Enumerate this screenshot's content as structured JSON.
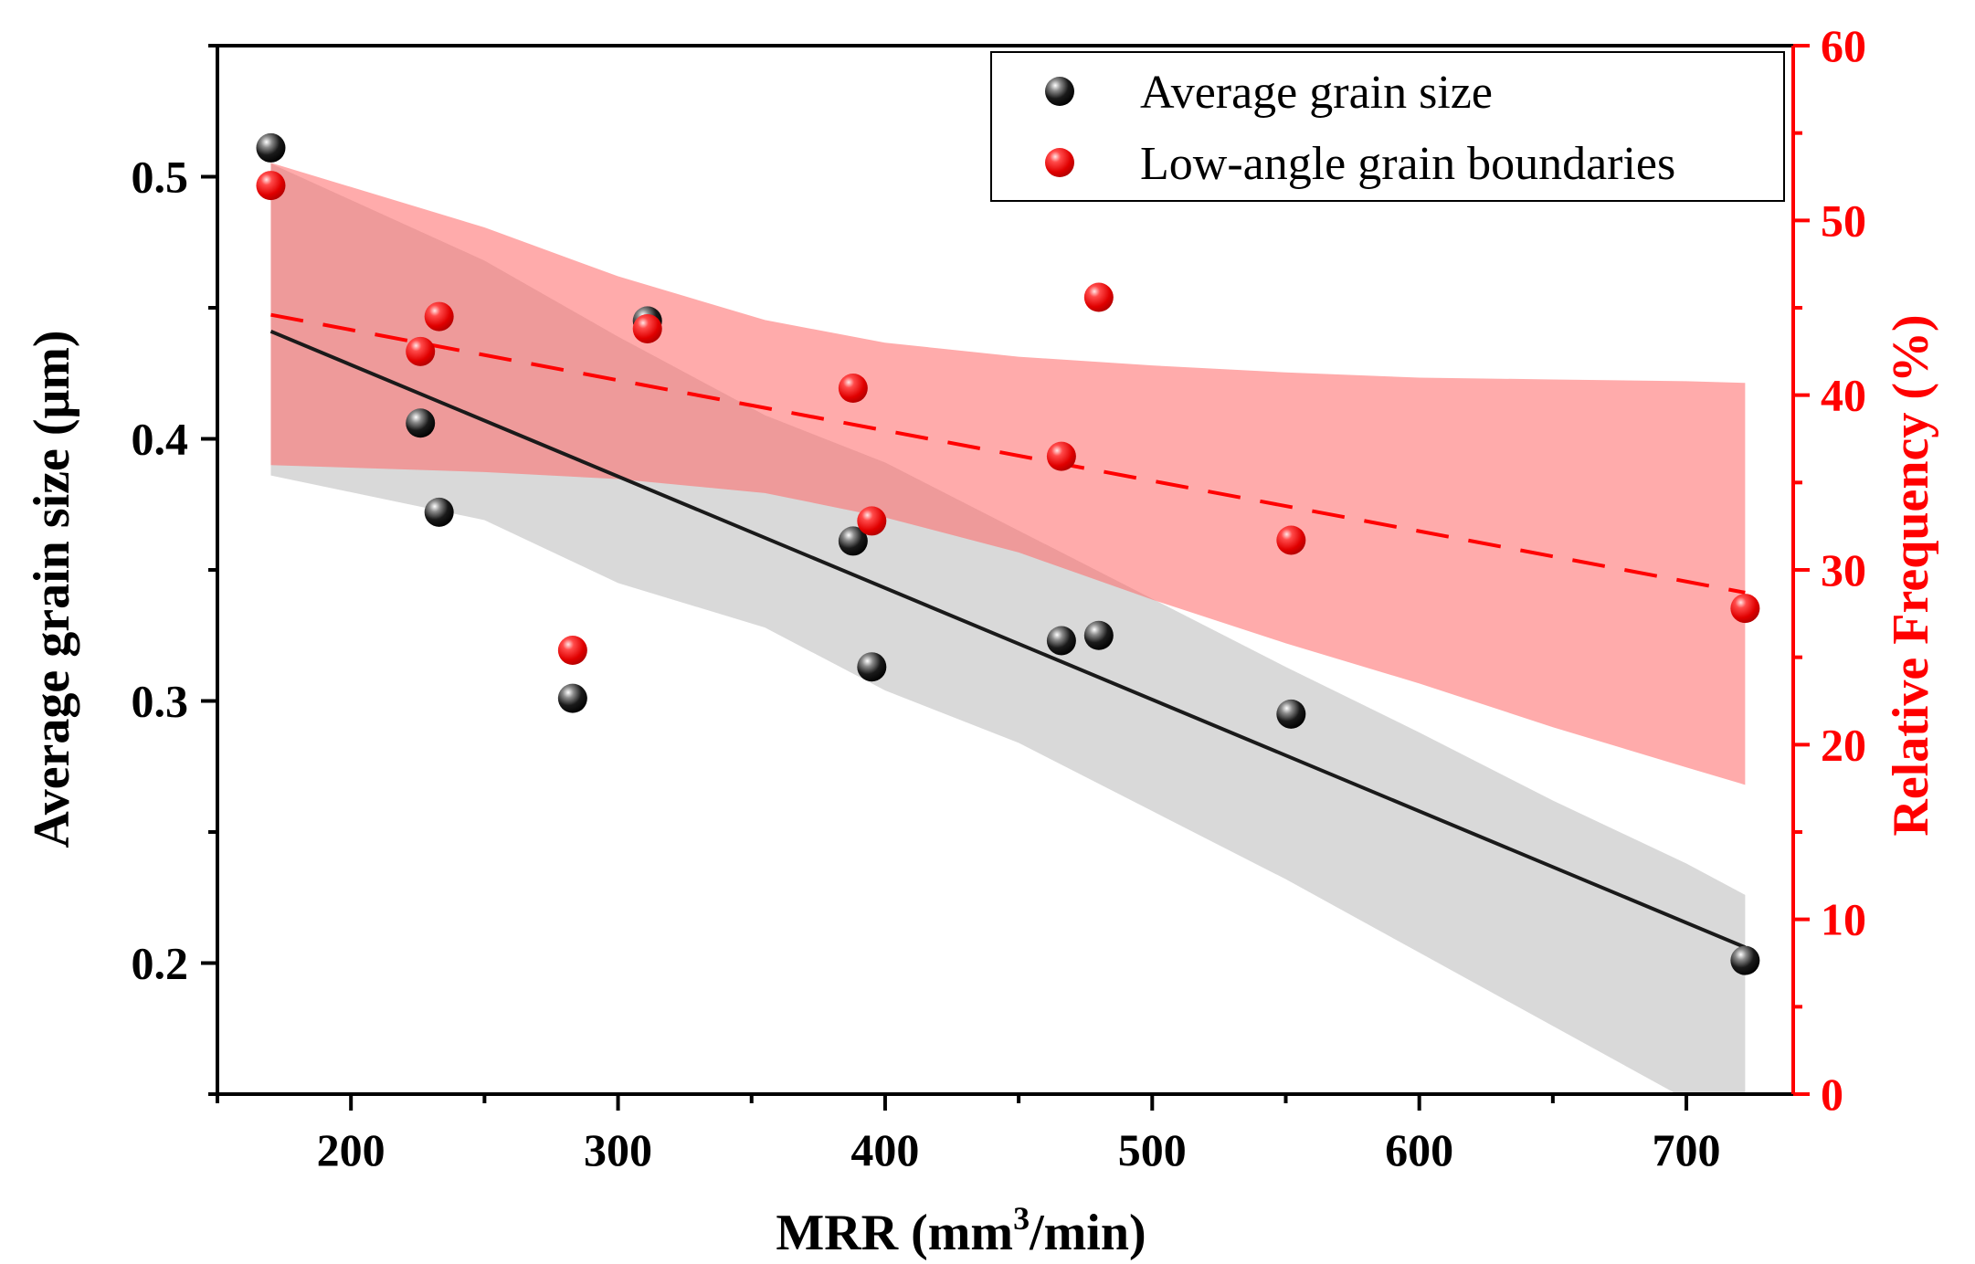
{
  "chart_data": {
    "type": "scatter",
    "xlabel": "MRR (mm³/min)",
    "xlabel_parts": {
      "pre": "MRR (mm",
      "sup": "3",
      "post": "/min)"
    },
    "ylabel_left": "Average grain size (μm)",
    "ylabel_right": "Relative Frequency (%)",
    "xlim": [
      150,
      740
    ],
    "ylim_left": [
      0.15,
      0.55
    ],
    "ylim_right": [
      0,
      60
    ],
    "x_ticks": [
      200,
      300,
      400,
      500,
      600,
      700
    ],
    "y_left_ticks": [
      0.2,
      0.3,
      0.4,
      0.5
    ],
    "y_right_ticks": [
      0,
      10,
      20,
      30,
      40,
      50,
      60
    ],
    "x_tick_labels": [
      "200",
      "300",
      "400",
      "500",
      "600",
      "700"
    ],
    "y_left_tick_labels": [
      "0.2",
      "0.3",
      "0.4",
      "0.5"
    ],
    "y_right_tick_labels": [
      "0",
      "10",
      "20",
      "30",
      "40",
      "50",
      "60"
    ],
    "grid": false,
    "legend_position": "top-right",
    "colors": {
      "grain": "#000000",
      "lagb": "#ff0000",
      "band_grain": "#d9d9d9",
      "band_lagb": "#ff6666"
    },
    "series": [
      {
        "name": "Average grain size",
        "axis": "left",
        "points": [
          [
            170,
            0.511
          ],
          [
            226,
            0.406
          ],
          [
            233,
            0.372
          ],
          [
            283,
            0.301
          ],
          [
            311,
            0.445
          ],
          [
            388,
            0.361
          ],
          [
            395,
            0.313
          ],
          [
            466,
            0.323
          ],
          [
            480,
            0.325
          ],
          [
            552,
            0.295
          ],
          [
            722,
            0.201
          ]
        ],
        "fit": {
          "x": [
            170,
            722
          ],
          "y": [
            0.441,
            0.206
          ]
        },
        "confidence_band": {
          "x": [
            170,
            250,
            300,
            355,
            400,
            450,
            500,
            550,
            600,
            650,
            700,
            722
          ],
          "upper": [
            0.505,
            0.468,
            0.439,
            0.409,
            0.391,
            0.365,
            0.339,
            0.313,
            0.288,
            0.262,
            0.238,
            0.226
          ],
          "lower": [
            0.386,
            0.369,
            0.345,
            0.328,
            0.304,
            0.284,
            0.258,
            0.232,
            0.204,
            0.176,
            0.148,
            0.134
          ]
        }
      },
      {
        "name": "Low-angle grain boundaries",
        "axis": "right",
        "points": [
          [
            170,
            52.0
          ],
          [
            226,
            42.5
          ],
          [
            233,
            44.5
          ],
          [
            283,
            25.4
          ],
          [
            311,
            43.8
          ],
          [
            388,
            40.4
          ],
          [
            395,
            32.8
          ],
          [
            466,
            36.5
          ],
          [
            480,
            45.6
          ],
          [
            552,
            31.7
          ],
          [
            722,
            27.8
          ]
        ],
        "fit": {
          "x": [
            170,
            722
          ],
          "y": [
            44.6,
            28.7
          ]
        },
        "confidence_band": {
          "x": [
            170,
            250,
            300,
            355,
            400,
            450,
            500,
            550,
            600,
            650,
            700,
            722
          ],
          "upper": [
            53.3,
            49.6,
            46.8,
            44.3,
            43.0,
            42.2,
            41.7,
            41.3,
            41.0,
            40.9,
            40.8,
            40.7
          ],
          "lower": [
            36.0,
            35.6,
            35.2,
            34.4,
            33.0,
            31.0,
            28.3,
            25.8,
            23.5,
            21.0,
            18.7,
            17.7
          ]
        }
      }
    ]
  }
}
